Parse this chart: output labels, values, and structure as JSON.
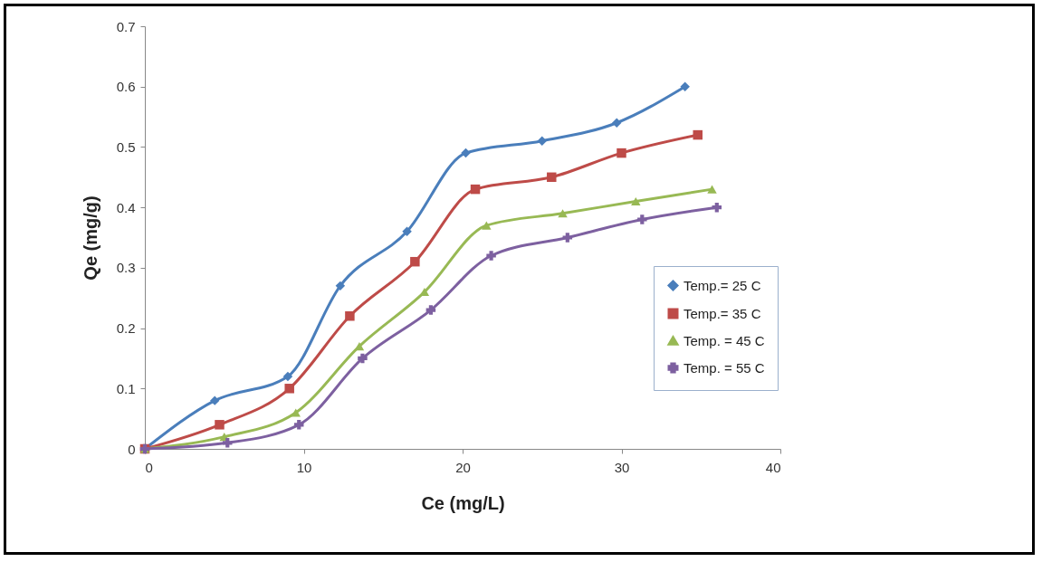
{
  "chart_data": {
    "type": "line",
    "xlabel": "Ce (mg/L)",
    "ylabel": "Qe (mg/g)",
    "xlim": [
      0,
      40
    ],
    "xticks": [
      0,
      10,
      20,
      30,
      40
    ],
    "ylim": [
      0,
      0.7
    ],
    "yticks": [
      0,
      0.1,
      0.2,
      0.3,
      0.4,
      0.5,
      0.6,
      0.7
    ],
    "grid": false,
    "legend": "right",
    "series": [
      {
        "name": "Temp.= 25 C",
        "color": "#4a7ebb",
        "marker": "diamond",
        "x": [
          0,
          4.4,
          9.0,
          12.3,
          16.5,
          20.2,
          25.0,
          29.7,
          34.0
        ],
        "values": [
          0,
          0.08,
          0.12,
          0.27,
          0.36,
          0.49,
          0.51,
          0.54,
          0.6
        ]
      },
      {
        "name": "Temp.= 35 C",
        "color": "#be4b48",
        "marker": "square",
        "x": [
          0,
          4.7,
          9.1,
          12.9,
          17.0,
          20.8,
          25.6,
          30.0,
          34.8
        ],
        "values": [
          0,
          0.04,
          0.1,
          0.22,
          0.31,
          0.43,
          0.45,
          0.49,
          0.52
        ]
      },
      {
        "name": "Temp. = 45 C",
        "color": "#98b954",
        "marker": "triangle",
        "x": [
          0,
          5.0,
          9.5,
          13.5,
          17.6,
          21.5,
          26.3,
          30.9,
          35.7
        ],
        "values": [
          0,
          0.02,
          0.06,
          0.17,
          0.26,
          0.37,
          0.39,
          0.41,
          0.43
        ]
      },
      {
        "name": "Temp. = 55 C",
        "color": "#7d60a0",
        "marker": "cross",
        "x": [
          0,
          5.2,
          9.7,
          13.7,
          18.0,
          21.8,
          26.6,
          31.3,
          36.0
        ],
        "values": [
          0,
          0.01,
          0.04,
          0.15,
          0.23,
          0.32,
          0.35,
          0.38,
          0.4
        ]
      }
    ]
  }
}
